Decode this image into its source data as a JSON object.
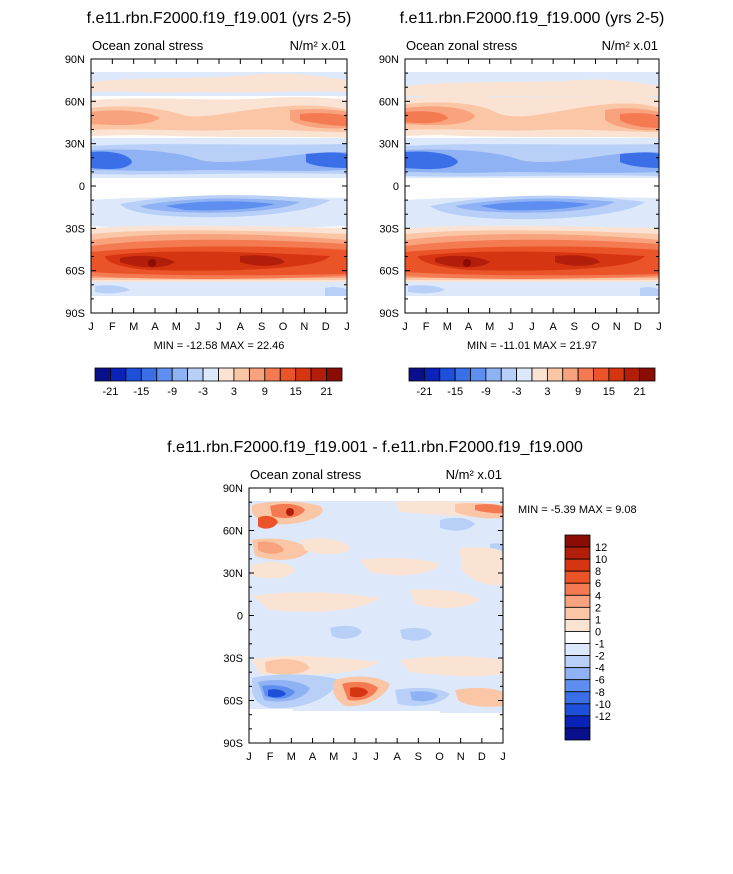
{
  "chart_data": [
    {
      "type": "heatmap",
      "title": "f.e11.rbn.F2000.f19_f19.001 (yrs 2-5)",
      "left_label": "Ocean zonal stress",
      "units_label": "N/m² x.01",
      "y_ticks": [
        "90N",
        "60N",
        "30N",
        "0",
        "30S",
        "60S",
        "90S"
      ],
      "x_ticks": [
        "J",
        "F",
        "M",
        "A",
        "M",
        "J",
        "J",
        "A",
        "S",
        "O",
        "N",
        "D",
        "J"
      ],
      "stats": "MIN = -12.58 MAX =  22.46",
      "min": -12.58,
      "max": 22.46,
      "colorbar_labels": [
        "-21",
        "-15",
        "-9",
        "-3",
        "3",
        "9",
        "15",
        "21"
      ],
      "colorbar_colors": [
        "#0a0f8c",
        "#0b22b8",
        "#1d4fd8",
        "#3a6fe8",
        "#5e8ff0",
        "#8fb2f4",
        "#b8cff8",
        "#dde9fb",
        "#fbe3d4",
        "#fbc6a6",
        "#f9a27e",
        "#f47a52",
        "#eb5428",
        "#d63512",
        "#b21e0a",
        "#8a0d05"
      ]
    },
    {
      "type": "heatmap",
      "title": "f.e11.rbn.F2000.f19_f19.000 (yrs 2-5)",
      "left_label": "Ocean zonal stress",
      "units_label": "N/m² x.01",
      "y_ticks": [
        "90N",
        "60N",
        "30N",
        "0",
        "30S",
        "60S",
        "90S"
      ],
      "x_ticks": [
        "J",
        "F",
        "M",
        "A",
        "M",
        "J",
        "J",
        "A",
        "S",
        "O",
        "N",
        "D",
        "J"
      ],
      "stats": "MIN = -11.01 MAX =  21.97",
      "min": -11.01,
      "max": 21.97,
      "colorbar_labels": [
        "-21",
        "-15",
        "-9",
        "-3",
        "3",
        "9",
        "15",
        "21"
      ],
      "colorbar_colors": [
        "#0a0f8c",
        "#0b22b8",
        "#1d4fd8",
        "#3a6fe8",
        "#5e8ff0",
        "#8fb2f4",
        "#b8cff8",
        "#dde9fb",
        "#fbe3d4",
        "#fbc6a6",
        "#f9a27e",
        "#f47a52",
        "#eb5428",
        "#d63512",
        "#b21e0a",
        "#8a0d05"
      ]
    },
    {
      "type": "heatmap",
      "title": "f.e11.rbn.F2000.f19_f19.001 - f.e11.rbn.F2000.f19_f19.000",
      "left_label": "Ocean zonal stress",
      "units_label": "N/m² x.01",
      "y_ticks": [
        "90N",
        "60N",
        "30N",
        "0",
        "30S",
        "60S",
        "90S"
      ],
      "x_ticks": [
        "J",
        "F",
        "M",
        "A",
        "M",
        "J",
        "J",
        "A",
        "S",
        "O",
        "N",
        "D",
        "J"
      ],
      "stats": "MIN =  -5.39 MAX =   9.08",
      "min": -5.39,
      "max": 9.08,
      "colorbar_labels": [
        "12",
        "10",
        "8",
        "6",
        "4",
        "2",
        "1",
        "0",
        "-1",
        "-2",
        "-4",
        "-6",
        "-8",
        "-10",
        "-12"
      ],
      "colorbar_colors": [
        "#8a0d05",
        "#b21e0a",
        "#d63512",
        "#eb5428",
        "#f47a52",
        "#f9a27e",
        "#fbc6a6",
        "#fbe3d4",
        "#ffffff",
        "#dde9fb",
        "#b8cff8",
        "#8fb2f4",
        "#5e8ff0",
        "#3a6fe8",
        "#1d4fd8",
        "#0b22b8",
        "#0a0f8c"
      ]
    }
  ]
}
